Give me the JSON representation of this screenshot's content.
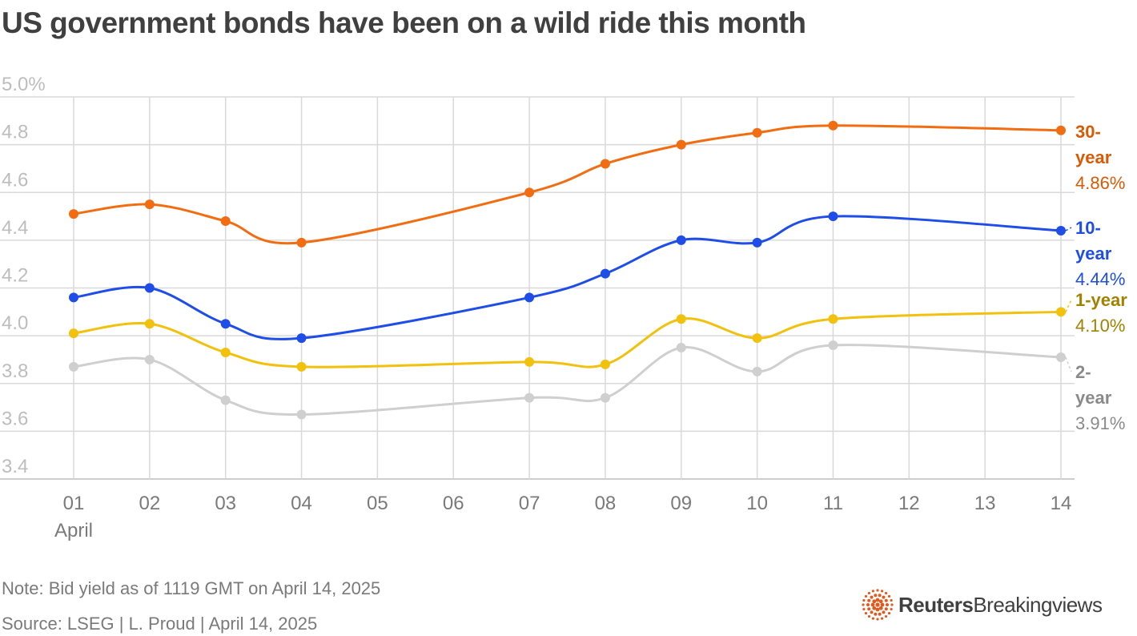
{
  "title": "US government bonds have been on a wild ride this month",
  "note": "Note: Bid yield as of 1119 GMT on April 14, 2025",
  "source": "Source: LSEG | L. Proud | April 14, 2025",
  "logo": {
    "brand": "Reuters",
    "product": "Breakingviews",
    "icon": "reuters-dot-ring-icon",
    "color": "#e15a1e"
  },
  "chart_data": {
    "type": "line",
    "x_ticks": [
      "01",
      "02",
      "03",
      "04",
      "05",
      "06",
      "07",
      "08",
      "09",
      "10",
      "11",
      "12",
      "13",
      "14"
    ],
    "x_sublabel": "April",
    "y_ticks": [
      "5.0%",
      "4.8",
      "4.6",
      "4.4",
      "4.2",
      "4.0",
      "3.8",
      "3.6",
      "3.4"
    ],
    "ylim": [
      3.4,
      5.0
    ],
    "grid": true,
    "series": [
      {
        "name": "30-",
        "name2": "year",
        "value_label": "4.86%",
        "color": "#f26d12",
        "label_color": "#d95a05",
        "x": [
          1,
          2,
          3,
          4,
          7,
          8,
          9,
          10,
          11,
          14
        ],
        "values": [
          4.51,
          4.55,
          4.48,
          4.39,
          4.6,
          4.72,
          4.8,
          4.85,
          4.88,
          4.86
        ]
      },
      {
        "name": "10-",
        "name2": "year",
        "value_label": "4.44%",
        "color": "#1f4de8",
        "label_color": "#1f4de8",
        "x": [
          1,
          2,
          3,
          4,
          7,
          8,
          9,
          10,
          11,
          14
        ],
        "values": [
          4.16,
          4.2,
          4.05,
          3.99,
          4.16,
          4.26,
          4.4,
          4.39,
          4.5,
          4.44
        ]
      },
      {
        "name": "1-year",
        "name2": "",
        "value_label": "4.10%",
        "color": "#f2c10d",
        "label_color": "#a08200",
        "x": [
          1,
          2,
          3,
          4,
          7,
          8,
          9,
          10,
          11,
          14
        ],
        "values": [
          4.01,
          4.05,
          3.93,
          3.87,
          3.89,
          3.88,
          4.07,
          3.99,
          4.07,
          4.1
        ]
      },
      {
        "name": "2-",
        "name2": "year",
        "value_label": "3.91%",
        "color": "#cfcfcf",
        "label_color": "#8a8a8a",
        "x": [
          1,
          2,
          3,
          4,
          7,
          8,
          9,
          10,
          11,
          14
        ],
        "values": [
          3.87,
          3.9,
          3.73,
          3.67,
          3.74,
          3.74,
          3.95,
          3.85,
          3.96,
          3.91
        ]
      }
    ]
  }
}
